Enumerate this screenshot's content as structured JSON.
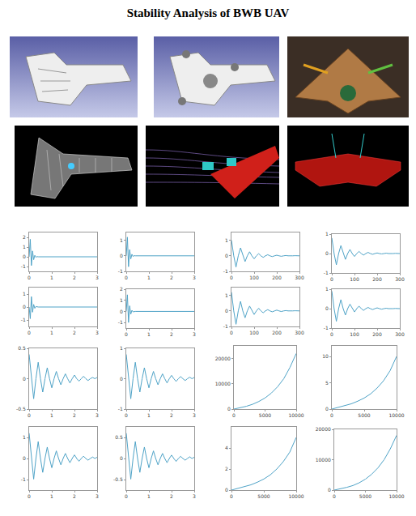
{
  "title": "Stability Analysis of BWB UAV",
  "chart_data": [
    {
      "type": "line",
      "x": [
        0,
        0.05,
        0.1,
        0.15,
        0.2,
        0.25,
        0.3,
        0.35,
        0.4,
        0.5,
        0.6,
        0.8,
        1,
        1.5,
        2,
        2.5,
        3
      ],
      "values": [
        0,
        1.8,
        -0.9,
        0.6,
        -0.3,
        0.15,
        -0.05,
        0.02,
        0,
        0,
        0,
        0,
        0,
        0,
        0,
        0,
        0
      ],
      "color": "#4fa3c7",
      "xlim": [
        0,
        3
      ],
      "ylim": [
        -1.5,
        2.5
      ],
      "xticks": [
        0,
        1,
        2,
        3
      ],
      "yticks": [
        -1,
        0,
        1,
        2
      ],
      "grid": false
    },
    {
      "type": "line",
      "x": [
        0,
        0.05,
        0.1,
        0.15,
        0.2,
        0.25,
        0.3,
        0.35,
        0.4,
        0.5,
        0.6,
        0.8,
        1,
        1.5,
        2,
        2.5,
        3
      ],
      "values": [
        0,
        1.2,
        -0.7,
        0.4,
        -0.2,
        0.1,
        -0.04,
        0.01,
        0,
        0,
        0,
        0,
        0,
        0,
        0,
        0,
        0
      ],
      "color": "#4fa3c7",
      "xlim": [
        0,
        3
      ],
      "ylim": [
        -1,
        1.5
      ],
      "xticks": [
        0,
        1,
        2,
        3
      ],
      "yticks": [
        -1,
        0,
        1
      ],
      "grid": false
    },
    {
      "type": "line",
      "x": [
        0,
        0.05,
        0.1,
        0.15,
        0.2,
        0.25,
        0.3,
        0.35,
        0.4,
        0.5,
        0.6,
        0.8,
        1,
        1.5,
        2,
        2.5,
        3
      ],
      "values": [
        0,
        -0.9,
        0.8,
        -0.4,
        0.2,
        -0.1,
        0.04,
        0.01,
        0,
        0,
        0,
        0,
        0,
        0,
        0,
        0,
        0
      ],
      "color": "#4fa3c7",
      "xlim": [
        0,
        3
      ],
      "ylim": [
        -1.5,
        1.5
      ],
      "xticks": [
        0,
        1,
        2,
        3
      ],
      "yticks": [
        -1,
        0,
        1
      ],
      "grid": false
    },
    {
      "type": "line",
      "x": [
        0,
        0.05,
        0.1,
        0.15,
        0.2,
        0.25,
        0.3,
        0.35,
        0.4,
        0.5,
        0.6,
        0.8,
        1,
        1.5,
        2,
        2.5,
        3
      ],
      "values": [
        0,
        1.5,
        -1,
        0.5,
        -0.25,
        0.1,
        -0.04,
        0.01,
        0,
        0,
        0,
        0,
        0,
        0,
        0,
        0,
        0
      ],
      "color": "#4fa3c7",
      "xlim": [
        0,
        3
      ],
      "ylim": [
        -1.5,
        2
      ],
      "xticks": [
        0,
        1,
        2,
        3
      ],
      "yticks": [
        -1,
        0,
        1,
        2
      ],
      "grid": false
    },
    {
      "type": "line",
      "x": [
        0,
        10,
        20,
        30,
        40,
        50,
        60,
        70,
        80,
        90,
        100,
        110,
        120,
        130,
        140,
        150,
        160,
        170,
        180,
        190,
        200,
        210,
        220,
        230,
        240,
        250,
        260,
        270,
        280,
        290,
        300
      ],
      "values": [
        1,
        0,
        -0.72,
        0,
        0.51,
        0,
        -0.37,
        0,
        0.26,
        0,
        -0.19,
        0,
        0.14,
        0,
        -0.1,
        0,
        0.07,
        0,
        -0.05,
        0,
        0.04,
        0,
        -0.03,
        0,
        0.02,
        0,
        -0.01,
        0,
        0.01,
        0,
        0
      ],
      "color": "#4fa3c7",
      "xlim": [
        0,
        300
      ],
      "ylim": [
        -1,
        1.5
      ],
      "xticks": [
        0,
        100,
        200,
        300
      ],
      "yticks": [
        -1,
        0,
        1
      ],
      "grid": false
    },
    {
      "type": "line",
      "x": [
        0,
        10,
        20,
        30,
        40,
        50,
        60,
        70,
        80,
        90,
        100,
        110,
        120,
        130,
        140,
        150,
        160,
        170,
        180,
        190,
        200,
        210,
        220,
        230,
        240,
        250,
        260,
        270,
        280,
        290,
        300
      ],
      "values": [
        0.8,
        0,
        -0.58,
        0,
        0.41,
        0,
        -0.3,
        0,
        0.21,
        0,
        -0.15,
        0,
        0.11,
        0,
        -0.08,
        0,
        0.06,
        0,
        -0.04,
        0,
        0.03,
        0,
        -0.02,
        0,
        0.02,
        0,
        -0.01,
        0,
        0.01,
        0,
        0
      ],
      "color": "#4fa3c7",
      "xlim": [
        0,
        300
      ],
      "ylim": [
        -1,
        1
      ],
      "xticks": [
        0,
        100,
        200,
        300
      ],
      "yticks": [
        -1,
        0,
        1
      ],
      "grid": false
    },
    {
      "type": "line",
      "x": [
        0,
        10,
        20,
        30,
        40,
        50,
        60,
        70,
        80,
        90,
        100,
        110,
        120,
        130,
        140,
        150,
        160,
        170,
        180,
        190,
        200,
        210,
        220,
        230,
        240,
        250,
        260,
        270,
        280,
        290,
        300
      ],
      "values": [
        1.2,
        0,
        -0.86,
        0,
        0.61,
        0,
        -0.44,
        0,
        0.31,
        0,
        -0.23,
        0,
        0.17,
        0,
        -0.12,
        0,
        0.08,
        0,
        -0.06,
        0,
        0.05,
        0,
        -0.04,
        0,
        0.02,
        0,
        -0.01,
        0,
        0.01,
        0,
        0
      ],
      "color": "#4fa3c7",
      "xlim": [
        0,
        300
      ],
      "ylim": [
        -1,
        1.5
      ],
      "xticks": [
        0,
        100,
        200,
        300
      ],
      "yticks": [
        -1,
        0,
        1
      ],
      "grid": false
    },
    {
      "type": "line",
      "x": [
        0,
        10,
        20,
        30,
        40,
        50,
        60,
        70,
        80,
        90,
        100,
        110,
        120,
        130,
        140,
        150,
        160,
        170,
        180,
        190,
        200,
        210,
        220,
        230,
        240,
        250,
        260,
        270,
        280,
        290,
        300
      ],
      "values": [
        0.9,
        0,
        -0.65,
        0,
        0.46,
        0,
        -0.33,
        0,
        0.23,
        0,
        -0.17,
        0,
        0.13,
        0,
        -0.09,
        0,
        0.06,
        0,
        -0.05,
        0,
        0.04,
        0,
        -0.03,
        0,
        0.02,
        0,
        -0.01,
        0,
        0.01,
        0,
        0
      ],
      "color": "#4fa3c7",
      "xlim": [
        0,
        300
      ],
      "ylim": [
        -1,
        1
      ],
      "xticks": [
        0,
        100,
        200,
        300
      ],
      "yticks": [
        -1,
        0,
        1
      ],
      "grid": false
    },
    {
      "type": "line",
      "x": [
        0,
        0.1,
        0.2,
        0.3,
        0.4,
        0.5,
        0.6,
        0.7,
        0.8,
        0.9,
        1,
        1.1,
        1.2,
        1.3,
        1.4,
        1.5,
        1.6,
        1.7,
        1.8,
        1.9,
        2,
        2.1,
        2.2,
        2.3,
        2.4,
        2.5,
        2.6,
        2.7,
        2.8,
        2.9,
        3
      ],
      "values": [
        0.4,
        0,
        -0.33,
        0,
        0.27,
        0,
        -0.22,
        0,
        0.18,
        0,
        -0.15,
        0,
        0.12,
        0,
        -0.1,
        0,
        0.08,
        0,
        -0.07,
        0,
        0.06,
        0,
        -0.04,
        0,
        0.04,
        0,
        -0.03,
        0,
        0.02,
        0,
        0.02
      ],
      "color": "#4fa3c7",
      "xlim": [
        0,
        3
      ],
      "ylim": [
        -0.5,
        0.5
      ],
      "xticks": [
        0,
        1,
        2,
        3
      ],
      "yticks": [
        -0.5,
        0,
        0.5
      ],
      "grid": false
    },
    {
      "type": "line",
      "x": [
        0,
        0.1,
        0.2,
        0.3,
        0.4,
        0.5,
        0.6,
        0.7,
        0.8,
        0.9,
        1,
        1.1,
        1.2,
        1.3,
        1.4,
        1.5,
        1.6,
        1.7,
        1.8,
        1.9,
        2,
        2.1,
        2.2,
        2.3,
        2.4,
        2.5,
        2.6,
        2.7,
        2.8,
        2.9,
        3
      ],
      "values": [
        0.8,
        0,
        -0.66,
        0,
        0.54,
        0,
        -0.44,
        0,
        0.36,
        0,
        -0.3,
        0,
        0.24,
        0,
        -0.2,
        0,
        0.16,
        0,
        -0.14,
        0,
        0.11,
        0,
        -0.09,
        0,
        0.07,
        0,
        -0.06,
        0,
        0.05,
        0,
        0.04
      ],
      "color": "#4fa3c7",
      "xlim": [
        0,
        3
      ],
      "ylim": [
        -1,
        1
      ],
      "xticks": [
        0,
        1,
        2,
        3
      ],
      "yticks": [
        -1,
        0,
        1
      ],
      "grid": false
    },
    {
      "type": "line",
      "x": [
        0,
        0.1,
        0.2,
        0.3,
        0.4,
        0.5,
        0.6,
        0.7,
        0.8,
        0.9,
        1,
        1.1,
        1.2,
        1.3,
        1.4,
        1.5,
        1.6,
        1.7,
        1.8,
        1.9,
        2,
        2.1,
        2.2,
        2.3,
        2.4,
        2.5,
        2.6,
        2.7,
        2.8,
        2.9,
        3
      ],
      "values": [
        1.2,
        0,
        -0.98,
        0,
        0.8,
        0,
        -0.66,
        0,
        0.54,
        0,
        -0.44,
        0,
        0.36,
        0,
        -0.3,
        0,
        0.24,
        0,
        -0.2,
        0,
        0.17,
        0,
        -0.13,
        0,
        0.11,
        0,
        -0.08,
        0,
        0.07,
        0,
        0.06
      ],
      "color": "#4fa3c7",
      "xlim": [
        0,
        3
      ],
      "ylim": [
        -1.5,
        1.5
      ],
      "xticks": [
        0,
        1,
        2,
        3
      ],
      "yticks": [
        -1,
        0,
        1
      ],
      "grid": false
    },
    {
      "type": "line",
      "x": [
        0,
        0.1,
        0.2,
        0.3,
        0.4,
        0.5,
        0.6,
        0.7,
        0.8,
        0.9,
        1,
        1.1,
        1.2,
        1.3,
        1.4,
        1.5,
        1.6,
        1.7,
        1.8,
        1.9,
        2,
        2.1,
        2.2,
        2.3,
        2.4,
        2.5,
        2.6,
        2.7,
        2.8,
        2.9,
        3
      ],
      "values": [
        0.6,
        0,
        -0.49,
        0,
        0.4,
        0,
        -0.33,
        0,
        0.27,
        0,
        -0.22,
        0,
        0.18,
        0,
        -0.15,
        0,
        0.12,
        0,
        -0.1,
        0,
        0.08,
        0,
        -0.07,
        0,
        0.05,
        0,
        -0.04,
        0,
        0.04,
        0,
        0.03
      ],
      "color": "#4fa3c7",
      "xlim": [
        0,
        3
      ],
      "ylim": [
        -0.75,
        0.75
      ],
      "xticks": [
        0,
        1,
        2,
        3
      ],
      "yticks": [
        -0.5,
        0,
        0.5
      ],
      "grid": false
    },
    {
      "type": "line",
      "x": [
        0,
        1000,
        2000,
        3000,
        4000,
        5000,
        6000,
        7000,
        8000,
        9000,
        10000
      ],
      "values": [
        0,
        500,
        1100,
        1900,
        3000,
        4400,
        6300,
        8800,
        12000,
        16500,
        22000
      ],
      "color": "#4fa3c7",
      "xlim": [
        0,
        10000
      ],
      "ylim": [
        0,
        25000
      ],
      "xticks": [
        0,
        5000,
        10000
      ],
      "yticks": [
        0,
        10000,
        20000
      ],
      "grid": false
    },
    {
      "type": "line",
      "x": [
        0,
        1000,
        2000,
        3000,
        4000,
        5000,
        6000,
        7000,
        8000,
        9000,
        10000
      ],
      "values": [
        0,
        0.3,
        0.6,
        1,
        1.5,
        2.1,
        2.9,
        4,
        5.4,
        7.3,
        10
      ],
      "color": "#4fa3c7",
      "xlim": [
        0,
        10000
      ],
      "ylim": [
        0,
        12
      ],
      "xticks": [
        0,
        5000,
        10000
      ],
      "yticks": [
        0,
        5,
        10
      ],
      "grid": false
    },
    {
      "type": "line",
      "x": [
        0,
        1000,
        2000,
        3000,
        4000,
        5000,
        6000,
        7000,
        8000,
        9000,
        10000
      ],
      "values": [
        0,
        0.15,
        0.3,
        0.5,
        0.75,
        1.05,
        1.45,
        2,
        2.7,
        3.6,
        5
      ],
      "color": "#4fa3c7",
      "xlim": [
        0,
        10000
      ],
      "ylim": [
        0,
        6
      ],
      "xticks": [
        0,
        5000,
        10000
      ],
      "yticks": [
        0,
        2,
        4
      ],
      "grid": false
    },
    {
      "type": "line",
      "x": [
        0,
        1000,
        2000,
        3000,
        4000,
        5000,
        6000,
        7000,
        8000,
        9000,
        10000
      ],
      "values": [
        0,
        400,
        900,
        1500,
        2400,
        3600,
        5200,
        7300,
        10000,
        13600,
        18000
      ],
      "color": "#4fa3c7",
      "xlim": [
        0,
        10000
      ],
      "ylim": [
        0,
        20000
      ],
      "xticks": [
        0,
        5000,
        10000
      ],
      "yticks": [
        0,
        10000,
        20000
      ],
      "grid": false
    }
  ]
}
